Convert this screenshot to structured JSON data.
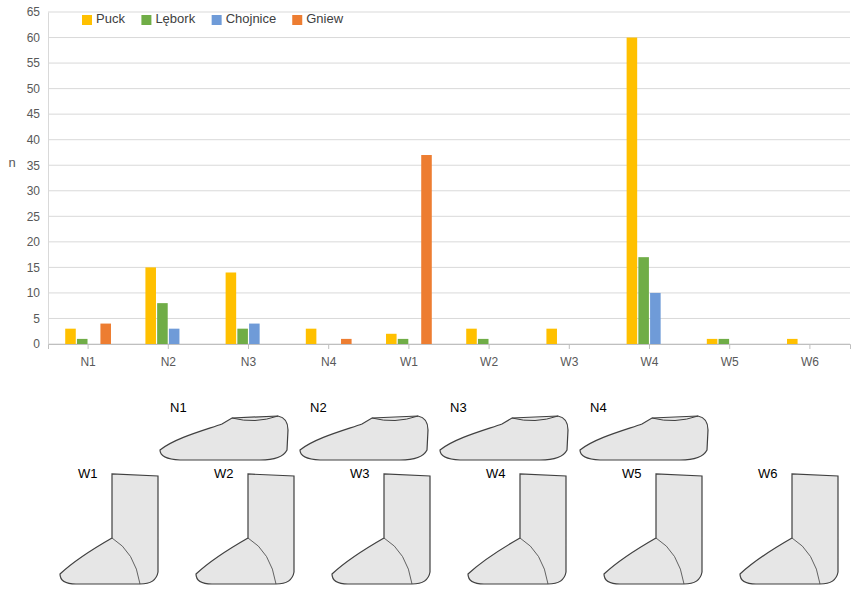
{
  "chart_data": {
    "type": "bar",
    "y_label": "n",
    "categories": [
      "N1",
      "N2",
      "N3",
      "N4",
      "W1",
      "W2",
      "W3",
      "W4",
      "W5",
      "W6"
    ],
    "series": [
      {
        "name": "Puck",
        "color": "#ffc000",
        "values": [
          3,
          15,
          14,
          3,
          2,
          3,
          3,
          60,
          1,
          1
        ]
      },
      {
        "name": "Lębork",
        "color": "#70ad47",
        "values": [
          1,
          8,
          3,
          0,
          1,
          1,
          0,
          17,
          1,
          0
        ]
      },
      {
        "name": "Chojnice",
        "color": "#6f9bd8",
        "values": [
          0,
          3,
          4,
          0,
          0,
          0,
          0,
          10,
          0,
          0
        ]
      },
      {
        "name": "Gniew",
        "color": "#ed7d31",
        "values": [
          4,
          0,
          0,
          1,
          37,
          0,
          0,
          0,
          0,
          0
        ]
      }
    ],
    "ylim": [
      0,
      65
    ],
    "yticks": [
      0,
      5,
      10,
      15,
      20,
      25,
      30,
      35,
      40,
      45,
      50,
      55,
      60,
      65
    ],
    "grid": true,
    "legend": "upper left"
  }
}
